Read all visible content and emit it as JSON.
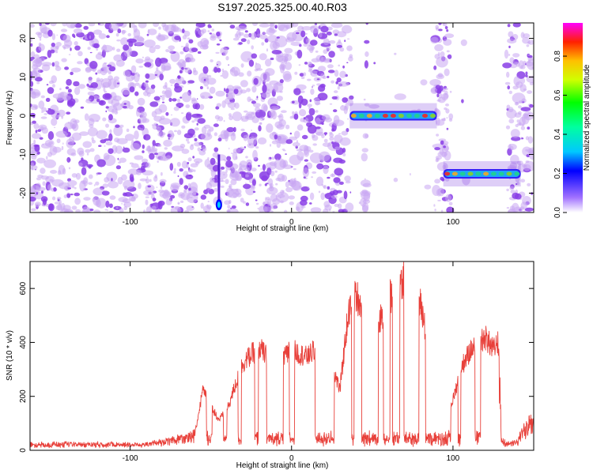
{
  "title": "S197.2025.325.00.40.R03",
  "colors": {
    "snr_line": "#e8403a",
    "blob": "#8a3ee6",
    "blob_light": "#c9a6f2",
    "axis": "#000000"
  },
  "chart_data": [
    {
      "type": "heatmap",
      "xlabel": "Height of straight line (km)",
      "ylabel": "Frequency (Hz)",
      "xlim": [
        -162,
        150
      ],
      "ylim": [
        -25,
        24
      ],
      "xticks": [
        -100,
        0,
        100
      ],
      "xtick_labels": [
        "-100",
        "0",
        "100"
      ],
      "yticks": [
        20,
        10,
        0,
        -10,
        -20
      ],
      "ytick_labels": [
        "20",
        "10",
        "0",
        "-10",
        "-20"
      ],
      "colorbar": {
        "label": "Normalized spectral amplitude",
        "range": [
          0,
          0.97
        ],
        "ticks": [
          0.0,
          0.2,
          0.4,
          0.6,
          0.8
        ],
        "tick_labels": [
          "0.0",
          "0.2",
          "0.4",
          "0.6",
          "0.8"
        ]
      },
      "features": [
        {
          "name": "carrier-segment-1",
          "x_start": 36,
          "x_end": 90,
          "frequency": 0
        },
        {
          "name": "carrier-segment-2",
          "x_start": 94,
          "x_end": 142,
          "frequency": -15
        },
        {
          "name": "spike",
          "x": -45,
          "frequency": -23
        }
      ],
      "gaps": [
        [
          37,
          45
        ],
        [
          47,
          88
        ],
        [
          99,
          133
        ]
      ]
    },
    {
      "type": "line",
      "xlabel": "Height of straight line (km)",
      "ylabel": "SNR (10 * v/v)",
      "xlim": [
        -162,
        150
      ],
      "ylim": [
        0,
        700
      ],
      "xticks": [
        -100,
        0,
        100
      ],
      "xtick_labels": [
        "-100",
        "0",
        "100"
      ],
      "yticks": [
        0,
        200,
        400,
        600
      ],
      "ytick_labels": [
        "0",
        "200",
        "400",
        "600"
      ],
      "envelope": {
        "x": [
          -162,
          -90,
          -80,
          -60,
          -55,
          -45,
          -40,
          -30,
          -20,
          -10,
          0,
          10,
          20,
          30,
          35,
          40,
          45,
          50,
          55,
          60,
          65,
          70,
          75,
          80,
          85,
          90,
          95,
          100,
          105,
          110,
          115,
          120,
          125,
          128,
          130,
          135,
          140,
          150
        ],
        "y": [
          20,
          20,
          30,
          60,
          240,
          120,
          160,
          350,
          410,
          330,
          400,
          370,
          440,
          240,
          540,
          620,
          560,
          480,
          520,
          610,
          630,
          700,
          640,
          580,
          420,
          300,
          130,
          200,
          330,
          390,
          420,
          450,
          400,
          430,
          40,
          20,
          30,
          160
        ]
      },
      "baseline": 20
    }
  ]
}
